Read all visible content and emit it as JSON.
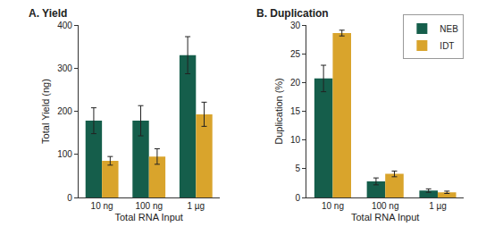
{
  "chart_data": [
    {
      "type": "bar",
      "title": "A. Yield",
      "x_label": "Total RNA Input",
      "y_label": "Total Yield (ng)",
      "categories": [
        "10 ng",
        "100 ng",
        "1 µg"
      ],
      "series": [
        {
          "name": "NEB",
          "color": "#155e4b",
          "values": [
            178,
            178,
            330
          ],
          "errors": [
            30,
            35,
            43
          ]
        },
        {
          "name": "IDT",
          "color": "#d9a42c",
          "values": [
            85,
            95,
            193
          ],
          "errors": [
            10,
            18,
            28
          ]
        }
      ],
      "ylim": [
        0,
        400
      ],
      "yticks": [
        0,
        100,
        200,
        300,
        400
      ],
      "grid": false
    },
    {
      "type": "bar",
      "title": "B. Duplication",
      "x_label": "Total RNA Input",
      "y_label": "Duplication (%)",
      "categories": [
        "10 ng",
        "100 ng",
        "1 µg"
      ],
      "series": [
        {
          "name": "NEB",
          "color": "#155e4b",
          "values": [
            20.7,
            2.8,
            1.2
          ],
          "errors": [
            2.3,
            0.6,
            0.3
          ]
        },
        {
          "name": "IDT",
          "color": "#d9a42c",
          "values": [
            28.6,
            4.1,
            0.9
          ],
          "errors": [
            0.5,
            0.5,
            0.2
          ]
        }
      ],
      "ylim": [
        0,
        30
      ],
      "yticks": [
        0,
        5,
        10,
        15,
        20,
        25,
        30
      ],
      "grid": false,
      "legend": "upper right"
    }
  ]
}
